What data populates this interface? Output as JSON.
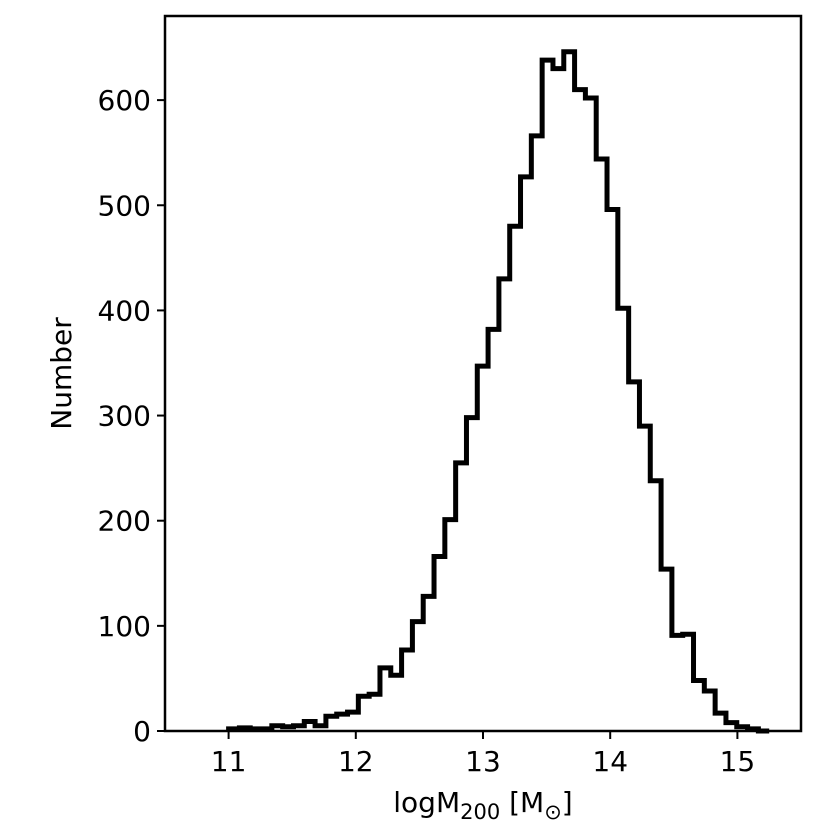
{
  "chart_data": {
    "type": "histogram",
    "xlabel": {
      "main": "logM",
      "sub": "200",
      "unit": "[M",
      "unit_sub": "⊙",
      "close": "]"
    },
    "ylabel": "Number",
    "xlim": [
      10.5,
      15.5
    ],
    "ylim": [
      0,
      680
    ],
    "xticks": [
      {
        "value": 11,
        "label": "11"
      },
      {
        "value": 12,
        "label": "12"
      },
      {
        "value": 13,
        "label": "13"
      },
      {
        "value": 14,
        "label": "14"
      },
      {
        "value": 15,
        "label": "15"
      }
    ],
    "yticks": [
      {
        "value": 0,
        "label": "0"
      },
      {
        "value": 100,
        "label": "100"
      },
      {
        "value": 200,
        "label": "200"
      },
      {
        "value": 300,
        "label": "300"
      },
      {
        "value": 400,
        "label": "400"
      },
      {
        "value": 500,
        "label": "500"
      },
      {
        "value": 600,
        "label": "600"
      }
    ],
    "bin_edges": [
      11.0,
      11.085,
      11.17,
      11.255,
      11.34,
      11.425,
      11.51,
      11.595,
      11.68,
      11.765,
      11.85,
      11.935,
      12.02,
      12.105,
      12.19,
      12.275,
      12.36,
      12.445,
      12.53,
      12.615,
      12.7,
      12.785,
      12.87,
      12.955,
      13.04,
      13.125,
      13.21,
      13.295,
      13.38,
      13.465,
      13.55,
      13.635,
      13.72,
      13.805,
      13.89,
      13.975,
      14.06,
      14.145,
      14.23,
      14.315,
      14.4,
      14.485,
      14.57,
      14.655,
      14.74,
      14.825,
      14.91,
      14.995,
      15.08,
      15.165,
      15.25
    ],
    "counts": [
      2,
      3,
      2,
      2,
      5,
      4,
      5,
      9,
      5,
      14,
      16,
      18,
      33,
      35,
      60,
      53,
      77,
      104,
      128,
      166,
      201,
      255,
      298,
      347,
      382,
      430,
      480,
      527,
      566,
      638,
      630,
      646,
      610,
      602,
      544,
      496,
      402,
      332,
      290,
      238,
      154,
      91,
      92,
      48,
      38,
      17,
      8,
      4,
      2,
      0
    ],
    "line_color": "#000000",
    "grid": false
  }
}
